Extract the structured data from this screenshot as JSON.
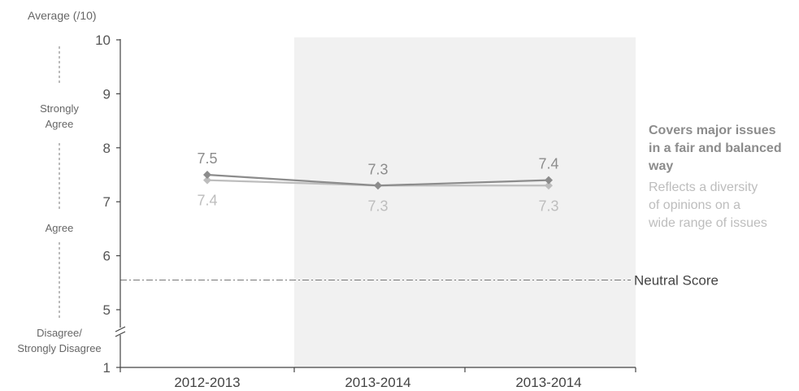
{
  "chart_data": {
    "type": "line",
    "ylabel": "Average (/10)",
    "categories": [
      "2012-2013",
      "2013-2014",
      "2013-2014"
    ],
    "yticks": [
      "1",
      "5",
      "6",
      "7",
      "8",
      "9",
      "10"
    ],
    "ylim": [
      1,
      10
    ],
    "axis_break": true,
    "shaded_categories": [
      1,
      2
    ],
    "grid": false,
    "series": [
      {
        "name": "Covers major issues in a fair and balanced way",
        "values": [
          7.5,
          7.3,
          7.4
        ],
        "labels": [
          "7.5",
          "7.3",
          "7.4"
        ],
        "color": "#8c8c8c"
      },
      {
        "name": "Reflects a diversity of opinions on a wide range of issues",
        "values": [
          7.4,
          7.3,
          7.3
        ],
        "labels": [
          "7.4",
          "7.3",
          "7.3"
        ],
        "color": "#bdbdbd"
      }
    ],
    "legend_lines": [
      [
        "Covers major issues",
        "in a fair and balanced",
        "way"
      ],
      [
        "Reflects a diversity",
        "of opinions on a",
        "wide range of issues"
      ]
    ],
    "legend_position": "right",
    "reference_line": {
      "value": 5.55,
      "label": "Neutral Score"
    },
    "scale_bands": [
      {
        "lines": [
          "Strongly",
          "Agree"
        ]
      },
      {
        "lines": [
          "Agree"
        ]
      },
      {
        "lines": [
          "Disagree/",
          "Strongly Disagree"
        ]
      }
    ]
  }
}
